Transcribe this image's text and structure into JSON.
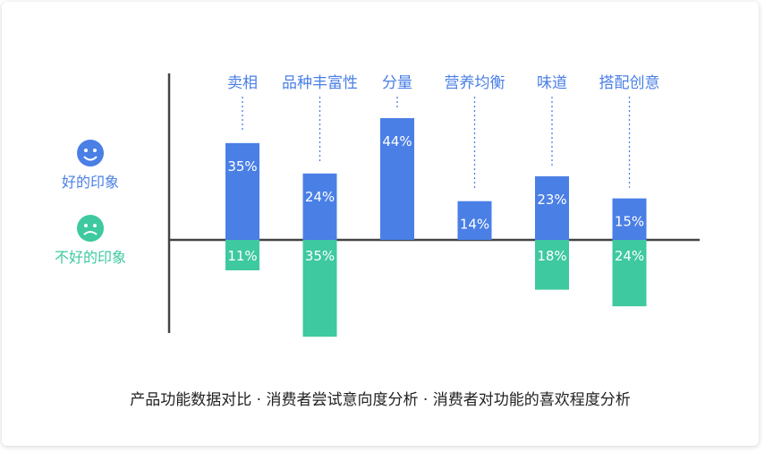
{
  "chart_data": {
    "type": "bar",
    "categories": [
      "卖相",
      "品种丰富性",
      "分量",
      "营养均衡",
      "味道",
      "搭配创意"
    ],
    "series": [
      {
        "name": "好的印象",
        "values": [
          35,
          24,
          44,
          14,
          23,
          15
        ],
        "labels": [
          "35%",
          "24%",
          "44%",
          "14%",
          "23%",
          "15%"
        ],
        "color": "#4a7fe6"
      },
      {
        "name": "不好的印象",
        "values": [
          -11,
          -35,
          0,
          0,
          -18,
          -24
        ],
        "labels": [
          "11%",
          "35%",
          "",
          "",
          "18%",
          "24%"
        ],
        "color": "#3ec9a0"
      }
    ],
    "caption": "产品功能数据对比 · 消费者尝试意向度分析 · 消费者对功能的喜欢程度分析",
    "legend": {
      "positive": "好的印象",
      "negative": "不好的印象",
      "placement": "left"
    },
    "grid": false
  }
}
